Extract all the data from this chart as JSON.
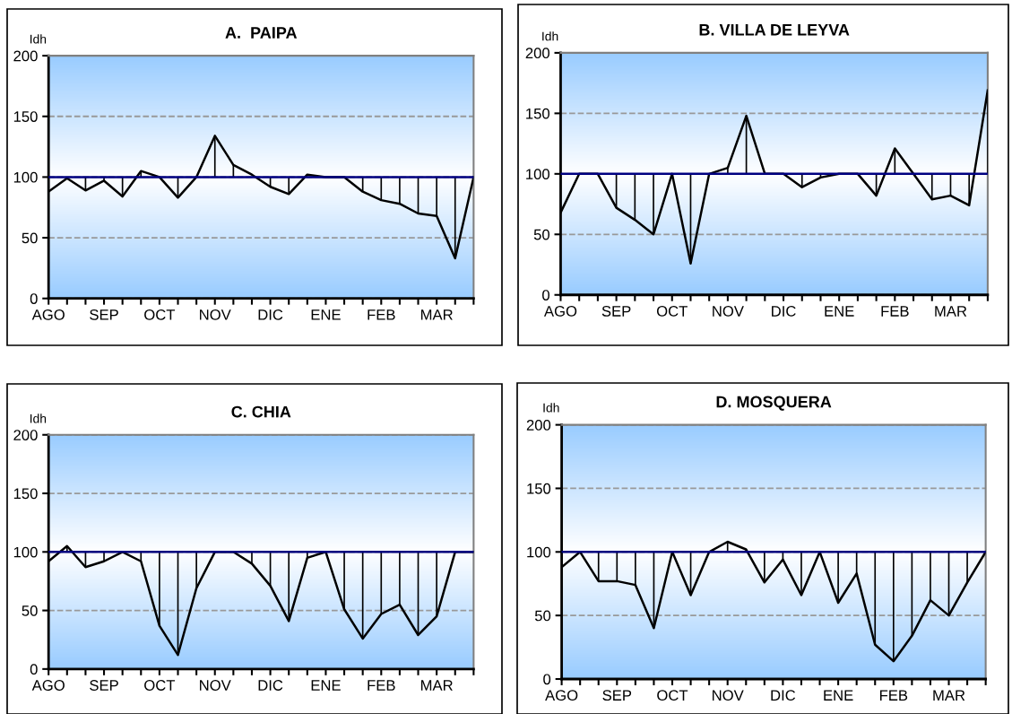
{
  "chart_data": [
    {
      "type": "line",
      "title": "A.  PAIPA",
      "ylabel": "Idh",
      "categories": [
        "AGO",
        null,
        null,
        "SEP",
        null,
        null,
        "OCT",
        null,
        null,
        "NOV",
        null,
        null,
        "DIC",
        null,
        null,
        "ENE",
        null,
        null,
        "FEB",
        null,
        null,
        "MAR",
        null,
        null
      ],
      "ylim": [
        0,
        200
      ],
      "yticks": [
        0,
        50,
        100,
        150,
        200
      ],
      "grid": "y",
      "marker": "none",
      "line_style": "solid",
      "series": [
        {
          "color": "#000000",
          "values": [
            88,
            99,
            89,
            97,
            84,
            105,
            100,
            83,
            100,
            134,
            110,
            102,
            92,
            86,
            102,
            100,
            100,
            88,
            81,
            78,
            70,
            68,
            33,
            100
          ],
          "errors": [
            [
              88,
              100
            ],
            null,
            [
              89,
              100
            ],
            [
              97,
              100
            ],
            [
              84,
              100
            ],
            [
              100,
              105
            ],
            null,
            [
              83,
              100
            ],
            null,
            [
              100,
              134
            ],
            [
              100,
              110
            ],
            null,
            [
              92,
              100
            ],
            [
              86,
              100
            ],
            null,
            null,
            null,
            [
              88,
              100
            ],
            [
              81,
              100
            ],
            [
              78,
              100
            ],
            [
              70,
              100
            ],
            [
              68,
              100
            ],
            [
              33,
              100
            ],
            null
          ]
        }
      ],
      "ref_lines": [
        {
          "axis": "y",
          "value": 100,
          "color": "#000080"
        }
      ]
    },
    {
      "type": "line",
      "title": "B. VILLA DE LEYVA",
      "ylabel": "Idh",
      "categories": [
        "AGO",
        null,
        null,
        "SEP",
        null,
        null,
        "OCT",
        null,
        null,
        "NOV",
        null,
        null,
        "DIC",
        null,
        null,
        "ENE",
        null,
        null,
        "FEB",
        null,
        null,
        "MAR",
        null,
        null
      ],
      "ylim": [
        0,
        200
      ],
      "yticks": [
        0,
        50,
        100,
        150,
        200
      ],
      "grid": "y",
      "marker": "none",
      "line_style": "solid",
      "series": [
        {
          "color": "#000000",
          "values": [
            68,
            100,
            100,
            72,
            62,
            50,
            100,
            26,
            100,
            105,
            148,
            100,
            100,
            89,
            97,
            100,
            100,
            82,
            121,
            100,
            79,
            82,
            74,
            169
          ],
          "errors": [
            [
              68,
              100
            ],
            null,
            null,
            [
              72,
              100
            ],
            [
              62,
              100
            ],
            [
              50,
              100
            ],
            null,
            [
              26,
              100
            ],
            null,
            [
              100,
              105
            ],
            [
              100,
              148
            ],
            null,
            null,
            [
              89,
              100
            ],
            [
              97,
              100
            ],
            null,
            null,
            [
              82,
              100
            ],
            [
              100,
              121
            ],
            null,
            [
              79,
              100
            ],
            [
              82,
              100
            ],
            [
              74,
              100
            ],
            [
              100,
              169
            ]
          ]
        }
      ],
      "ref_lines": [
        {
          "axis": "y",
          "value": 100,
          "color": "#000080"
        }
      ]
    },
    {
      "type": "line",
      "title": "C. CHIA",
      "ylabel": "Idh",
      "categories": [
        "AGO",
        null,
        null,
        "SEP",
        null,
        null,
        "OCT",
        null,
        null,
        "NOV",
        null,
        null,
        "DIC",
        null,
        null,
        "ENE",
        null,
        null,
        "FEB",
        null,
        null,
        "MAR",
        null,
        null
      ],
      "ylim": [
        0,
        200
      ],
      "yticks": [
        0,
        50,
        100,
        150,
        200
      ],
      "grid": "y",
      "marker": "none",
      "line_style": "solid",
      "series": [
        {
          "color": "#000000",
          "values": [
            92,
            105,
            87,
            92,
            100,
            92,
            37,
            12,
            69,
            100,
            100,
            90,
            71,
            41,
            95,
            100,
            51,
            26,
            47,
            55,
            29,
            45,
            100,
            100
          ],
          "errors": [
            [
              92,
              100
            ],
            [
              100,
              105
            ],
            [
              87,
              100
            ],
            [
              92,
              100
            ],
            null,
            [
              92,
              100
            ],
            [
              37,
              100
            ],
            [
              12,
              100
            ],
            [
              69,
              100
            ],
            null,
            null,
            [
              90,
              100
            ],
            [
              71,
              100
            ],
            [
              41,
              100
            ],
            [
              95,
              100
            ],
            null,
            [
              51,
              100
            ],
            [
              26,
              100
            ],
            [
              47,
              100
            ],
            [
              55,
              100
            ],
            [
              29,
              100
            ],
            [
              45,
              100
            ],
            null,
            null
          ]
        }
      ],
      "ref_lines": [
        {
          "axis": "y",
          "value": 100,
          "color": "#000080"
        }
      ]
    },
    {
      "type": "line",
      "title": "D. MOSQUERA",
      "ylabel": "Idh",
      "categories": [
        "AGO",
        null,
        null,
        "SEP",
        null,
        null,
        "OCT",
        null,
        null,
        "NOV",
        null,
        null,
        "DIC",
        null,
        null,
        "ENE",
        null,
        null,
        "FEB",
        null,
        null,
        "MAR",
        null,
        null
      ],
      "ylim": [
        0,
        200
      ],
      "yticks": [
        0,
        50,
        100,
        150,
        200
      ],
      "grid": "y",
      "marker": "none",
      "line_style": "solid",
      "series": [
        {
          "color": "#000000",
          "values": [
            88,
            100,
            77,
            77,
            74,
            40,
            100,
            66,
            100,
            108,
            102,
            76,
            94,
            66,
            100,
            60,
            83,
            27,
            14,
            34,
            62,
            50,
            76,
            100
          ],
          "errors": [
            [
              88,
              100
            ],
            null,
            [
              77,
              100
            ],
            [
              77,
              100
            ],
            [
              74,
              100
            ],
            [
              40,
              100
            ],
            null,
            [
              66,
              100
            ],
            null,
            [
              100,
              108
            ],
            [
              100,
              102
            ],
            [
              76,
              100
            ],
            [
              94,
              100
            ],
            [
              66,
              100
            ],
            null,
            [
              60,
              100
            ],
            [
              83,
              100
            ],
            [
              27,
              100
            ],
            [
              14,
              100
            ],
            [
              34,
              100
            ],
            [
              62,
              100
            ],
            [
              50,
              100
            ],
            [
              76,
              100
            ],
            null
          ]
        }
      ],
      "ref_lines": [
        {
          "axis": "y",
          "value": 100,
          "color": "#000080"
        }
      ]
    }
  ]
}
